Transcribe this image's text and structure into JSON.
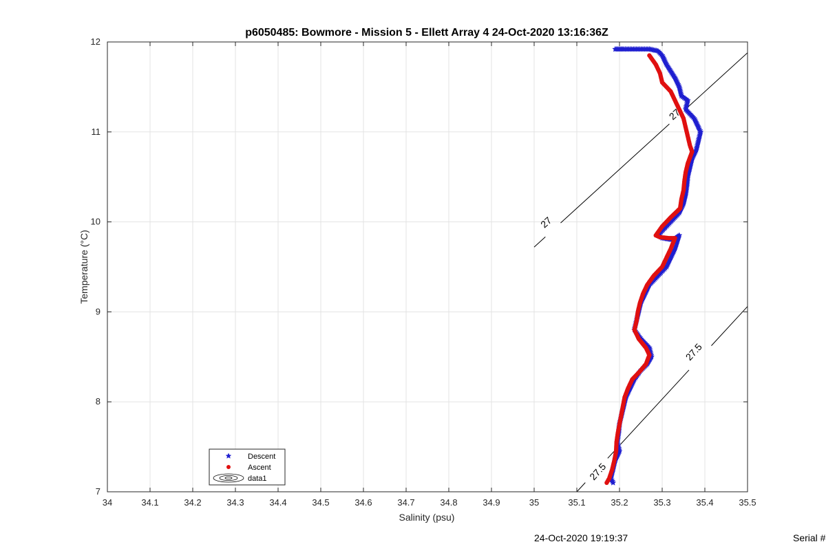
{
  "chart_data": {
    "type": "scatter",
    "title": "p6050485: Bowmore - Mission 5 - Ellett Array 4 24-Oct-2020 13:16:36Z",
    "xlabel": "Salinity (psu)",
    "ylabel": "Temperature (°C)",
    "xlim": [
      34,
      35.5
    ],
    "ylim": [
      7,
      12
    ],
    "xticks": [
      "34",
      "34.1",
      "34.2",
      "34.3",
      "34.4",
      "34.5",
      "34.6",
      "34.7",
      "34.8",
      "34.9",
      "35",
      "35.1",
      "35.2",
      "35.3",
      "35.4",
      "35.5"
    ],
    "yticks": [
      "7",
      "8",
      "9",
      "10",
      "11",
      "12"
    ],
    "grid": true,
    "legend": {
      "placement": "bottom-left",
      "entries": [
        "Descent",
        "Ascent",
        "data1"
      ]
    },
    "series": [
      {
        "name": "Descent",
        "color": "#1f1fd0",
        "marker": "star",
        "profile": [
          [
            35.19,
            11.92
          ],
          [
            35.21,
            11.92
          ],
          [
            35.24,
            11.92
          ],
          [
            35.27,
            11.92
          ],
          [
            35.29,
            11.9
          ],
          [
            35.3,
            11.85
          ],
          [
            35.31,
            11.75
          ],
          [
            35.33,
            11.6
          ],
          [
            35.34,
            11.5
          ],
          [
            35.345,
            11.4
          ],
          [
            35.36,
            11.35
          ],
          [
            35.355,
            11.25
          ],
          [
            35.375,
            11.15
          ],
          [
            35.385,
            11.05
          ],
          [
            35.39,
            11.0
          ],
          [
            35.385,
            10.9
          ],
          [
            35.38,
            10.8
          ],
          [
            35.37,
            10.7
          ],
          [
            35.365,
            10.6
          ],
          [
            35.36,
            10.5
          ],
          [
            35.358,
            10.4
          ],
          [
            35.355,
            10.3
          ],
          [
            35.35,
            10.2
          ],
          [
            35.34,
            10.1
          ],
          [
            35.32,
            10.0
          ],
          [
            35.3,
            9.9
          ],
          [
            35.29,
            9.85
          ],
          [
            35.3,
            9.82
          ],
          [
            35.325,
            9.8
          ],
          [
            35.34,
            9.85
          ],
          [
            35.33,
            9.7
          ],
          [
            35.32,
            9.6
          ],
          [
            35.31,
            9.5
          ],
          [
            35.29,
            9.4
          ],
          [
            35.27,
            9.3
          ],
          [
            35.26,
            9.2
          ],
          [
            35.25,
            9.1
          ],
          [
            35.245,
            9.0
          ],
          [
            35.24,
            8.9
          ],
          [
            35.235,
            8.8
          ],
          [
            35.25,
            8.7
          ],
          [
            35.27,
            8.6
          ],
          [
            35.275,
            8.5
          ],
          [
            35.265,
            8.42
          ],
          [
            35.25,
            8.35
          ],
          [
            35.235,
            8.25
          ],
          [
            35.225,
            8.15
          ],
          [
            35.215,
            8.05
          ],
          [
            35.21,
            7.95
          ],
          [
            35.205,
            7.85
          ],
          [
            35.2,
            7.75
          ],
          [
            35.198,
            7.65
          ],
          [
            35.195,
            7.55
          ],
          [
            35.2,
            7.45
          ],
          [
            35.19,
            7.35
          ],
          [
            35.185,
            7.25
          ],
          [
            35.18,
            7.15
          ],
          [
            35.185,
            7.1
          ]
        ]
      },
      {
        "name": "Ascent",
        "color": "#e01010",
        "marker": "circle",
        "profile": [
          [
            35.27,
            11.85
          ],
          [
            35.285,
            11.75
          ],
          [
            35.295,
            11.65
          ],
          [
            35.3,
            11.55
          ],
          [
            35.32,
            11.45
          ],
          [
            35.33,
            11.35
          ],
          [
            35.34,
            11.25
          ],
          [
            35.35,
            11.15
          ],
          [
            35.355,
            11.05
          ],
          [
            35.36,
            10.95
          ],
          [
            35.365,
            10.85
          ],
          [
            35.37,
            10.78
          ],
          [
            35.36,
            10.65
          ],
          [
            35.355,
            10.55
          ],
          [
            35.352,
            10.45
          ],
          [
            35.35,
            10.35
          ],
          [
            35.345,
            10.25
          ],
          [
            35.342,
            10.15
          ],
          [
            35.32,
            10.05
          ],
          [
            35.3,
            9.95
          ],
          [
            35.285,
            9.85
          ],
          [
            35.295,
            9.83
          ],
          [
            35.315,
            9.82
          ],
          [
            35.33,
            9.82
          ],
          [
            35.32,
            9.7
          ],
          [
            35.31,
            9.6
          ],
          [
            35.3,
            9.5
          ],
          [
            35.28,
            9.4
          ],
          [
            35.265,
            9.3
          ],
          [
            35.255,
            9.2
          ],
          [
            35.248,
            9.1
          ],
          [
            35.243,
            9.0
          ],
          [
            35.24,
            8.9
          ],
          [
            35.235,
            8.8
          ],
          [
            35.245,
            8.7
          ],
          [
            35.262,
            8.6
          ],
          [
            35.27,
            8.52
          ],
          [
            35.262,
            8.42
          ],
          [
            35.248,
            8.34
          ],
          [
            35.23,
            8.25
          ],
          [
            35.22,
            8.15
          ],
          [
            35.212,
            8.05
          ],
          [
            35.208,
            7.95
          ],
          [
            35.204,
            7.85
          ],
          [
            35.2,
            7.75
          ],
          [
            35.196,
            7.65
          ],
          [
            35.193,
            7.55
          ],
          [
            35.192,
            7.45
          ],
          [
            35.188,
            7.35
          ],
          [
            35.183,
            7.25
          ],
          [
            35.176,
            7.15
          ],
          [
            35.17,
            7.1
          ]
        ]
      }
    ],
    "contours": [
      {
        "label": "27",
        "line": [
          [
            35.0,
            9.72
          ],
          [
            35.5,
            11.88
          ]
        ],
        "label_points": [
          [
            35.029,
            9.99
          ],
          [
            35.33,
            11.19
          ]
        ]
      },
      {
        "label": "27.5",
        "line": [
          [
            35.1,
            7.0
          ],
          [
            35.5,
            9.06
          ]
        ],
        "label_points": [
          [
            35.15,
            7.22
          ],
          [
            35.375,
            8.55
          ]
        ]
      }
    ]
  },
  "footer": {
    "timestamp": "24-Oct-2020 19:19:37",
    "serial": "Serial #"
  }
}
